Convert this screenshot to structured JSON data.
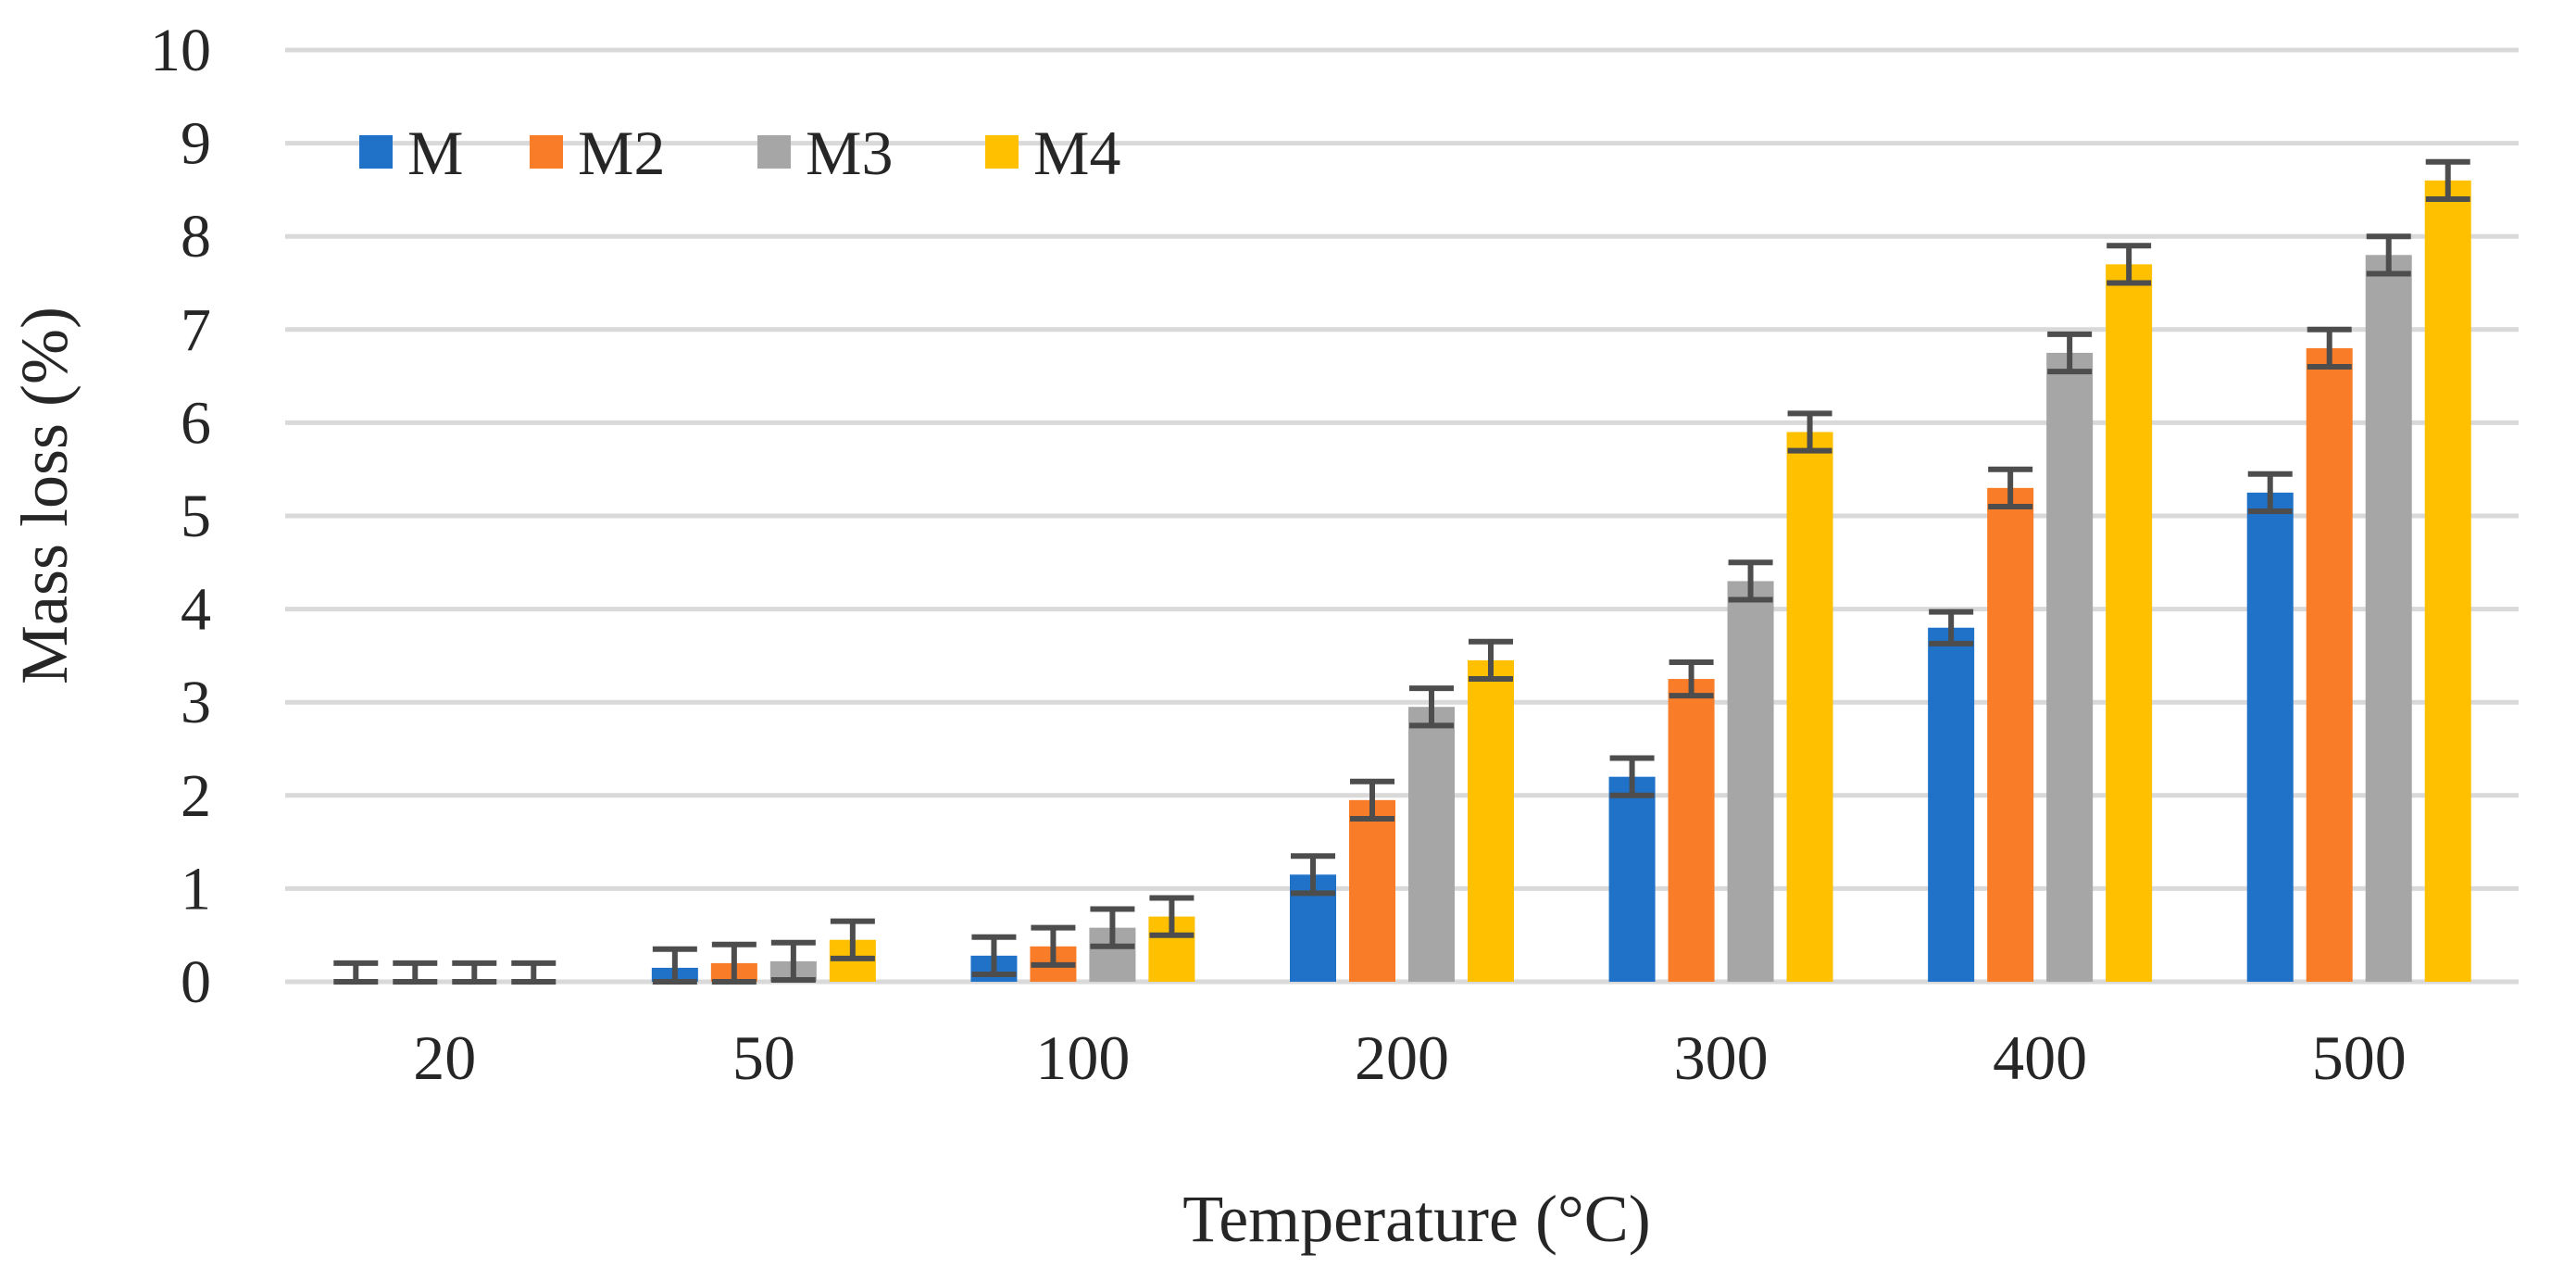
{
  "chart_data": {
    "type": "bar",
    "title": "",
    "xlabel": "Temperature (°C)",
    "ylabel": "Mass loss (%)",
    "ylim": [
      0,
      10
    ],
    "yticks": [
      "0",
      "1",
      "2",
      "3",
      "4",
      "5",
      "6",
      "7",
      "8",
      "9",
      "10"
    ],
    "grid": true,
    "legend_position": "top-left",
    "categories": [
      "20",
      "50",
      "100",
      "200",
      "300",
      "400",
      "500"
    ],
    "series": [
      {
        "name": "M",
        "color": "#1f72c8",
        "values": [
          0,
          0.15,
          0.28,
          1.15,
          2.2,
          3.8,
          5.25
        ],
        "errors": [
          0.2,
          0.2,
          0.2,
          0.2,
          0.2,
          0.17,
          0.2
        ]
      },
      {
        "name": "M2",
        "color": "#f97d28",
        "values": [
          0,
          0.2,
          0.38,
          1.95,
          3.25,
          5.3,
          6.8
        ],
        "errors": [
          0.2,
          0.2,
          0.2,
          0.2,
          0.18,
          0.2,
          0.2
        ]
      },
      {
        "name": "M3",
        "color": "#a6a6a6",
        "values": [
          0,
          0.22,
          0.58,
          2.95,
          4.3,
          6.75,
          7.8
        ],
        "errors": [
          0.2,
          0.2,
          0.2,
          0.2,
          0.2,
          0.2,
          0.2
        ]
      },
      {
        "name": "M4",
        "color": "#ffc000",
        "values": [
          0,
          0.45,
          0.7,
          3.45,
          5.9,
          7.7,
          8.6
        ],
        "errors": [
          0.2,
          0.2,
          0.2,
          0.2,
          0.2,
          0.2,
          0.2
        ]
      }
    ]
  }
}
